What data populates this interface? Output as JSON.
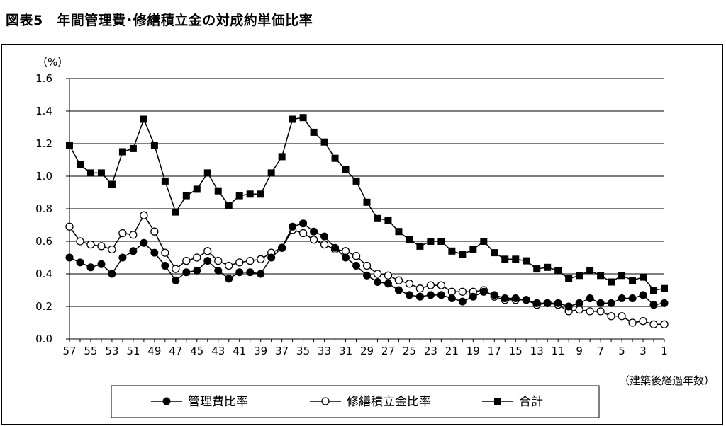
{
  "title": "図表5　年間管理費･修繕積立金の対成約単価比率",
  "chart_data": {
    "type": "line",
    "title": "図表5　年間管理費･修繕積立金の対成約単価比率",
    "ylabel": "（%）",
    "xlabel": "（建築後経過年数）",
    "ylim": [
      0,
      1.6
    ],
    "yticks": [
      "0.0",
      "0.2",
      "0.4",
      "0.6",
      "0.8",
      "1.0",
      "1.2",
      "1.4",
      "1.6"
    ],
    "x": [
      57,
      56,
      55,
      54,
      53,
      52,
      51,
      50,
      49,
      48,
      47,
      46,
      45,
      44,
      43,
      42,
      41,
      40,
      39,
      38,
      37,
      36,
      35,
      34,
      33,
      32,
      31,
      30,
      29,
      28,
      27,
      26,
      25,
      24,
      23,
      22,
      21,
      20,
      19,
      18,
      17,
      16,
      15,
      14,
      13,
      12,
      11,
      10,
      9,
      8,
      7,
      6,
      5,
      4,
      3,
      2,
      1
    ],
    "xticks": [
      57,
      55,
      53,
      51,
      49,
      47,
      45,
      43,
      41,
      39,
      37,
      35,
      33,
      31,
      29,
      27,
      25,
      23,
      21,
      19,
      17,
      15,
      13,
      11,
      9,
      7,
      5,
      3,
      1
    ],
    "grid": true,
    "legend_position": "bottom",
    "series": [
      {
        "name": "管理費比率",
        "marker": "filled-circle",
        "color": "#000000",
        "values": [
          0.5,
          0.47,
          0.44,
          0.46,
          0.4,
          0.5,
          0.54,
          0.59,
          0.53,
          0.45,
          0.36,
          0.41,
          0.42,
          0.48,
          0.42,
          0.37,
          0.41,
          0.41,
          0.4,
          0.5,
          0.56,
          0.69,
          0.71,
          0.66,
          0.63,
          0.56,
          0.5,
          0.45,
          0.39,
          0.35,
          0.34,
          0.3,
          0.27,
          0.26,
          0.27,
          0.27,
          0.25,
          0.23,
          0.26,
          0.29,
          0.27,
          0.25,
          0.25,
          0.24,
          0.22,
          0.22,
          0.22,
          0.2,
          0.22,
          0.25,
          0.22,
          0.22,
          0.25,
          0.25,
          0.27,
          0.21,
          0.22
        ]
      },
      {
        "name": "修繕積立金比率",
        "marker": "open-circle",
        "color": "#000000",
        "values": [
          0.69,
          0.6,
          0.58,
          0.57,
          0.55,
          0.65,
          0.64,
          0.76,
          0.66,
          0.53,
          0.43,
          0.48,
          0.5,
          0.54,
          0.48,
          0.45,
          0.47,
          0.48,
          0.49,
          0.53,
          0.56,
          0.67,
          0.65,
          0.61,
          0.58,
          0.55,
          0.54,
          0.51,
          0.45,
          0.4,
          0.39,
          0.36,
          0.34,
          0.31,
          0.33,
          0.33,
          0.29,
          0.29,
          0.29,
          0.3,
          0.26,
          0.24,
          0.24,
          0.24,
          0.21,
          0.22,
          0.21,
          0.17,
          0.18,
          0.17,
          0.17,
          0.14,
          0.14,
          0.1,
          0.11,
          0.09,
          0.09
        ]
      },
      {
        "name": "合計",
        "marker": "filled-square",
        "color": "#000000",
        "values": [
          1.19,
          1.07,
          1.02,
          1.02,
          0.95,
          1.15,
          1.17,
          1.35,
          1.19,
          0.97,
          0.78,
          0.88,
          0.92,
          1.02,
          0.91,
          0.82,
          0.88,
          0.89,
          0.89,
          1.02,
          1.12,
          1.35,
          1.36,
          1.27,
          1.21,
          1.11,
          1.04,
          0.97,
          0.84,
          0.74,
          0.73,
          0.66,
          0.61,
          0.57,
          0.6,
          0.6,
          0.54,
          0.52,
          0.55,
          0.6,
          0.53,
          0.49,
          0.49,
          0.48,
          0.43,
          0.44,
          0.42,
          0.37,
          0.39,
          0.42,
          0.39,
          0.35,
          0.39,
          0.36,
          0.38,
          0.3,
          0.31
        ]
      }
    ]
  }
}
